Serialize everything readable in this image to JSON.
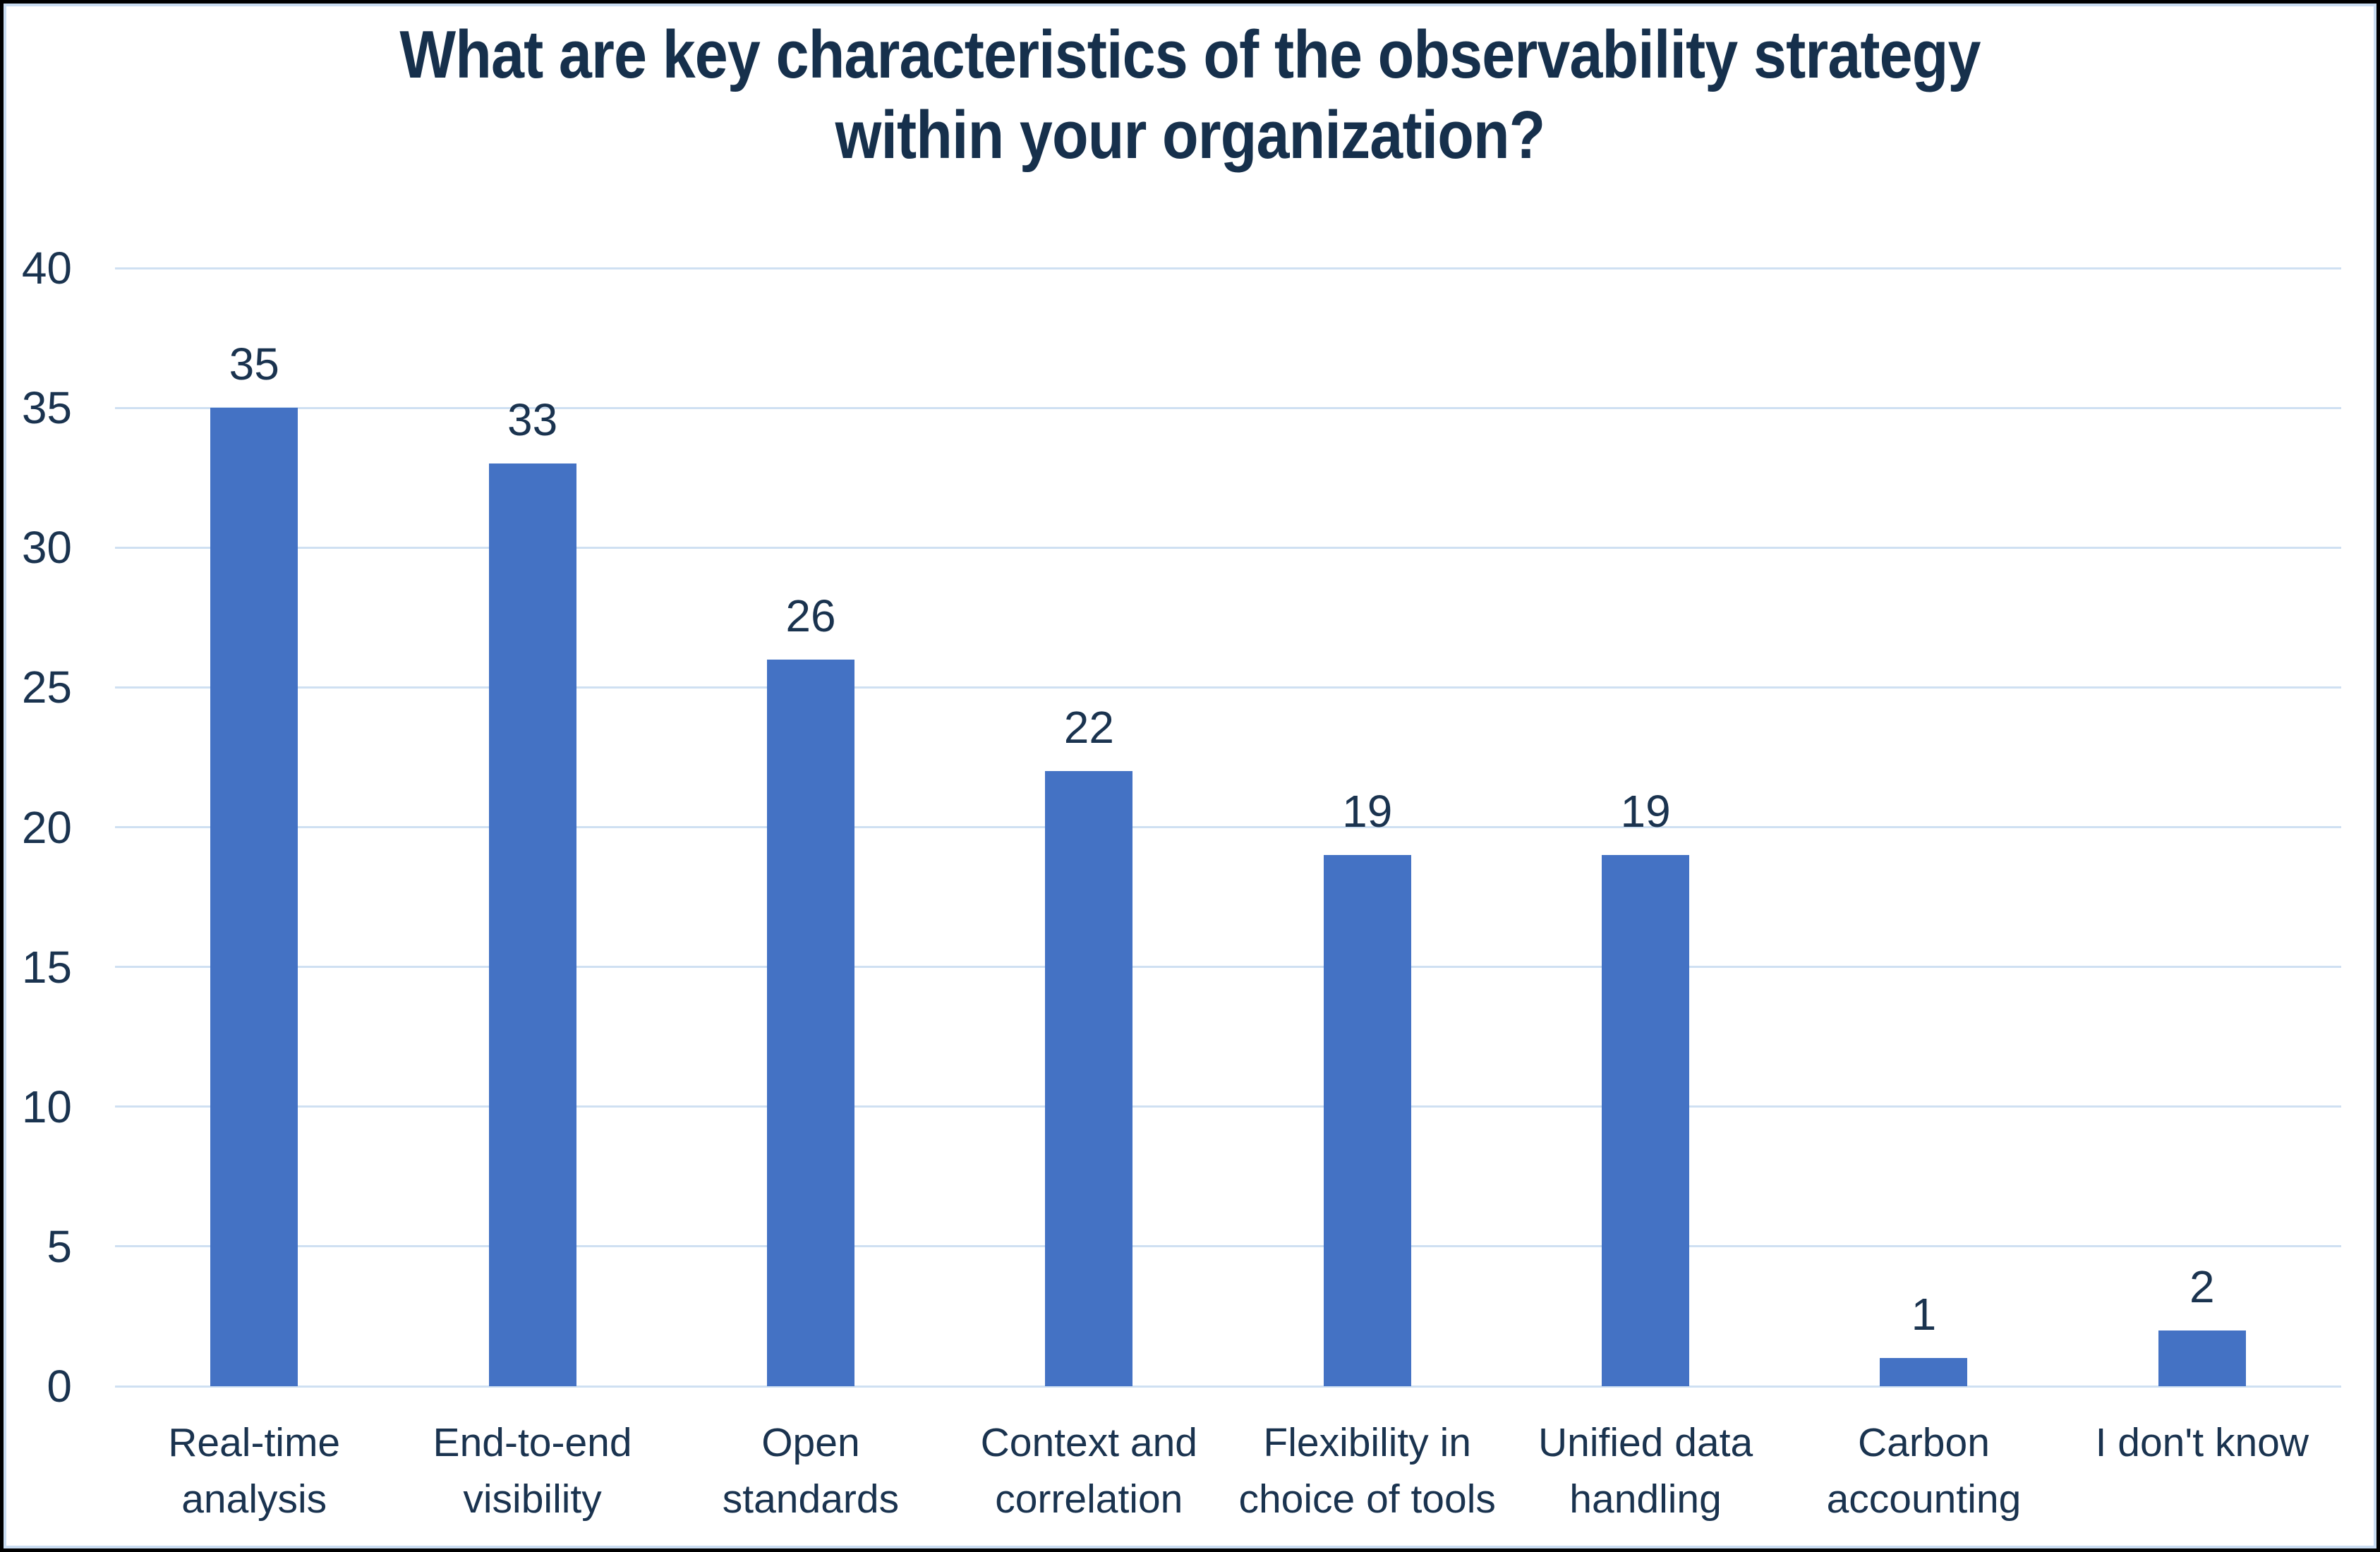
{
  "title": {
    "full": "What are key characteristics of the observability strategy within your organization?"
  },
  "colors": {
    "bar": "#4472c4",
    "gridline": "#cfe0f2",
    "text_navy": "#1a334f",
    "title_navy": "#16304c",
    "frame_light_blue": "#c9dcf1",
    "outer_border": "#000000",
    "background": "#ffffff"
  },
  "chart_data": {
    "type": "bar",
    "title": "What are key characteristics of the observability strategy within your organization?",
    "title_lines": [
      "What are key characteristics of the observability strategy",
      "within your organization?"
    ],
    "categories": [
      "Real-time analysis",
      "End-to-end visibility",
      "Open standards",
      "Context and correlation",
      "Flexibility in choice of tools",
      "Unified data handling",
      "Carbon accounting",
      "I don't know"
    ],
    "category_lines": [
      [
        "Real-time",
        "analysis"
      ],
      [
        "End-to-end",
        "visibility"
      ],
      [
        "Open",
        "standards"
      ],
      [
        "Context and",
        "correlation"
      ],
      [
        "Flexibility in",
        "choice of tools"
      ],
      [
        "Unified data",
        "handling"
      ],
      [
        "Carbon",
        "accounting"
      ],
      [
        "I don't know"
      ]
    ],
    "values": [
      35,
      33,
      26,
      22,
      19,
      19,
      1,
      2
    ],
    "xlabel": "",
    "ylabel": "",
    "ylim": [
      0,
      40
    ],
    "yticks": [
      0,
      5,
      10,
      15,
      20,
      25,
      30,
      35,
      40
    ],
    "grid": true,
    "legend": "none",
    "bar_color": "#4472c4"
  }
}
